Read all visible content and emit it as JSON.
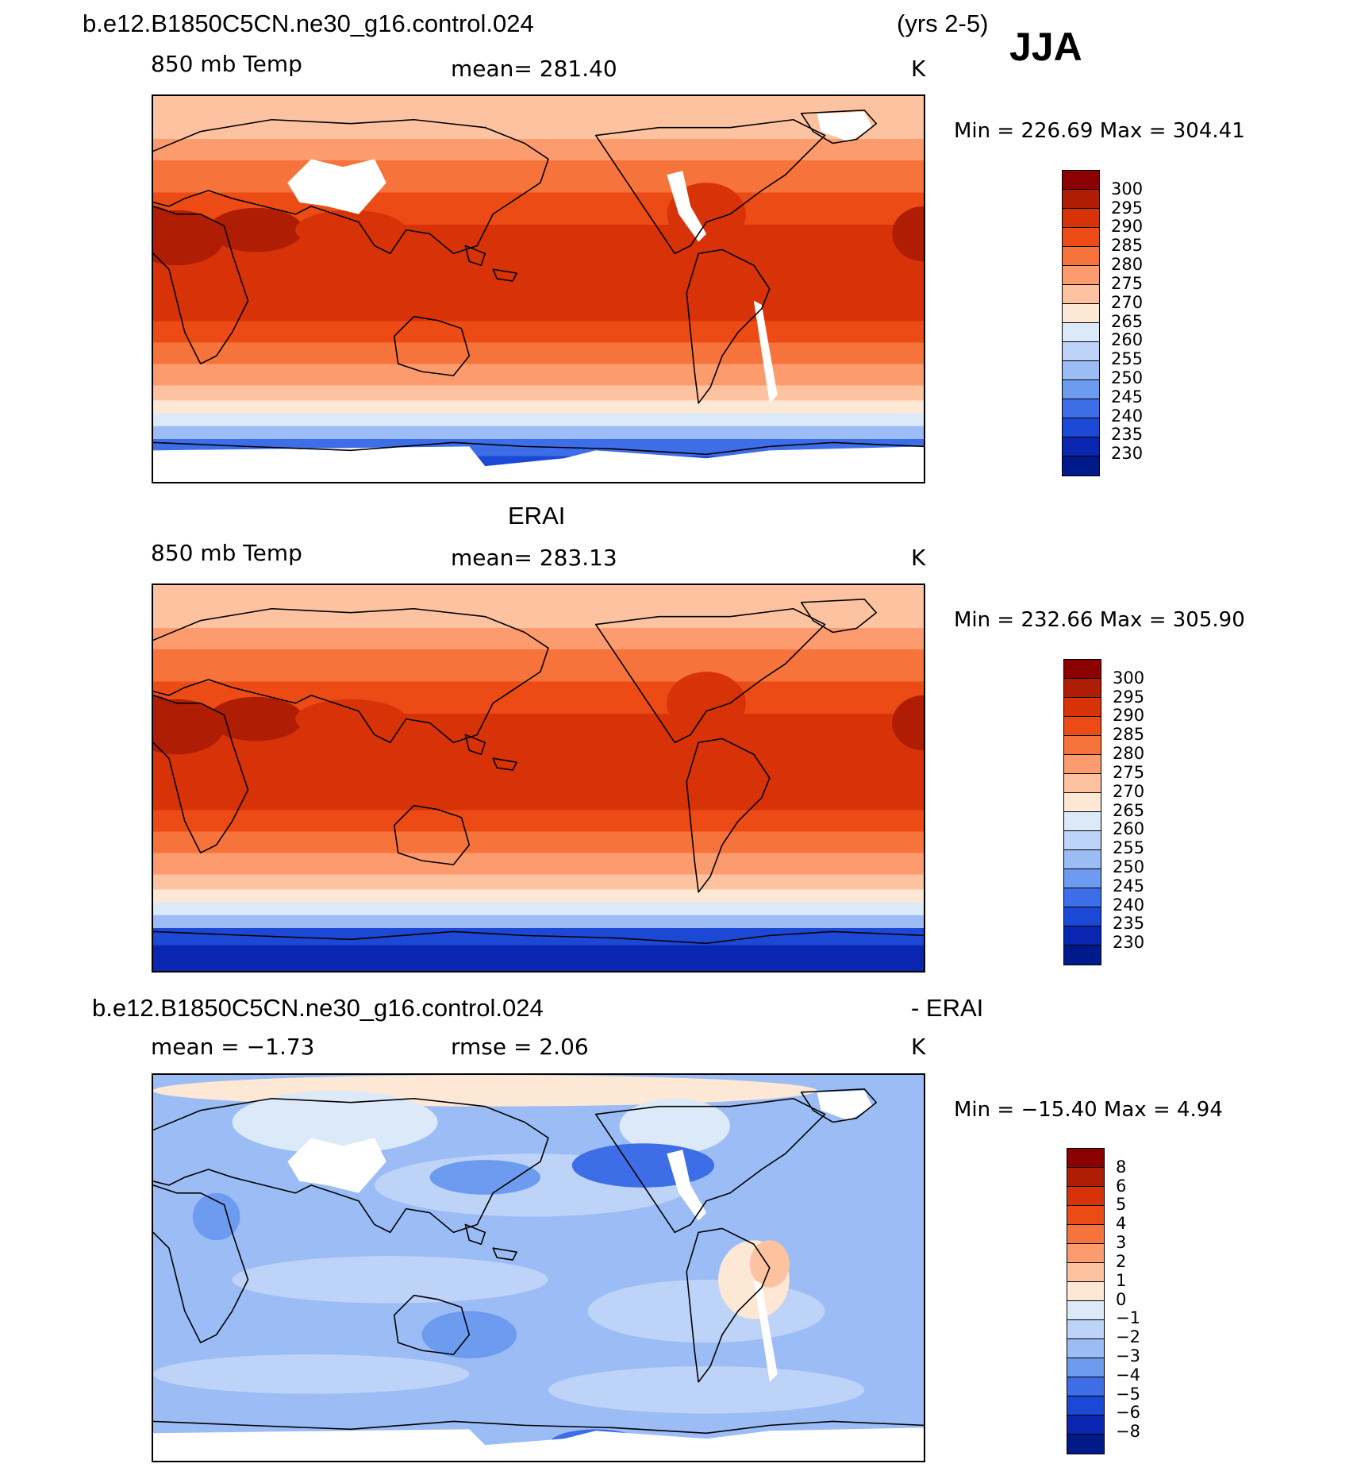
{
  "header": {
    "case_name": "b.e12.B1850C5CN.ne30_g16.control.024",
    "years": "(yrs 2-5)",
    "season": "JJA"
  },
  "panels": [
    {
      "id": "model",
      "title_left": "",
      "title_center": "",
      "variable": "850 mb Temp",
      "stat": "mean= 281.40",
      "units": "K",
      "minmax": "Min = 226.69 Max = 304.41",
      "palette": "temp",
      "has_land_mask": true,
      "colorbar_labels": [
        "300",
        "295",
        "290",
        "285",
        "280",
        "275",
        "270",
        "265",
        "260",
        "255",
        "250",
        "245",
        "240",
        "235",
        "230"
      ]
    },
    {
      "id": "obs",
      "title_left": "",
      "title_center": "ERAI",
      "variable": "850 mb Temp",
      "stat": "mean= 283.13",
      "units": "K",
      "minmax": "Min = 232.66 Max = 305.90",
      "palette": "temp",
      "has_land_mask": false,
      "colorbar_labels": [
        "300",
        "295",
        "290",
        "285",
        "280",
        "275",
        "270",
        "265",
        "260",
        "255",
        "250",
        "245",
        "240",
        "235",
        "230"
      ]
    },
    {
      "id": "diff",
      "title_left": "b.e12.B1850C5CN.ne30_g16.control.024",
      "title_right": "- ERAI",
      "variable": "mean =   −1.73",
      "stat": "rmse =    2.06",
      "units": "K",
      "minmax": "Min = −15.40 Max =    4.94",
      "palette": "diff",
      "has_land_mask": true,
      "colorbar_labels": [
        "8",
        "6",
        "5",
        "4",
        "3",
        "2",
        "1",
        "0",
        "−1",
        "−2",
        "−3",
        "−4",
        "−5",
        "−6",
        "−8"
      ]
    }
  ],
  "palettes": {
    "temp": [
      "#8b0000",
      "#b01d05",
      "#d83208",
      "#ec4b16",
      "#f7733c",
      "#fb9b6e",
      "#fdc3a1",
      "#fde8d6",
      "#dbe9f8",
      "#bdd3f7",
      "#9bbcf5",
      "#6d9bef",
      "#3e6de8",
      "#1c48d6",
      "#0a26b0",
      "#001a8a"
    ],
    "diff": [
      "#8b0000",
      "#b01d05",
      "#d83208",
      "#ec4b16",
      "#f7733c",
      "#fb9b6e",
      "#fdc3a1",
      "#fde8d6",
      "#dbe9f8",
      "#bdd3f7",
      "#9bbcf5",
      "#6d9bef",
      "#3e6de8",
      "#1c48d6",
      "#0a26b0",
      "#001a8a"
    ]
  }
}
